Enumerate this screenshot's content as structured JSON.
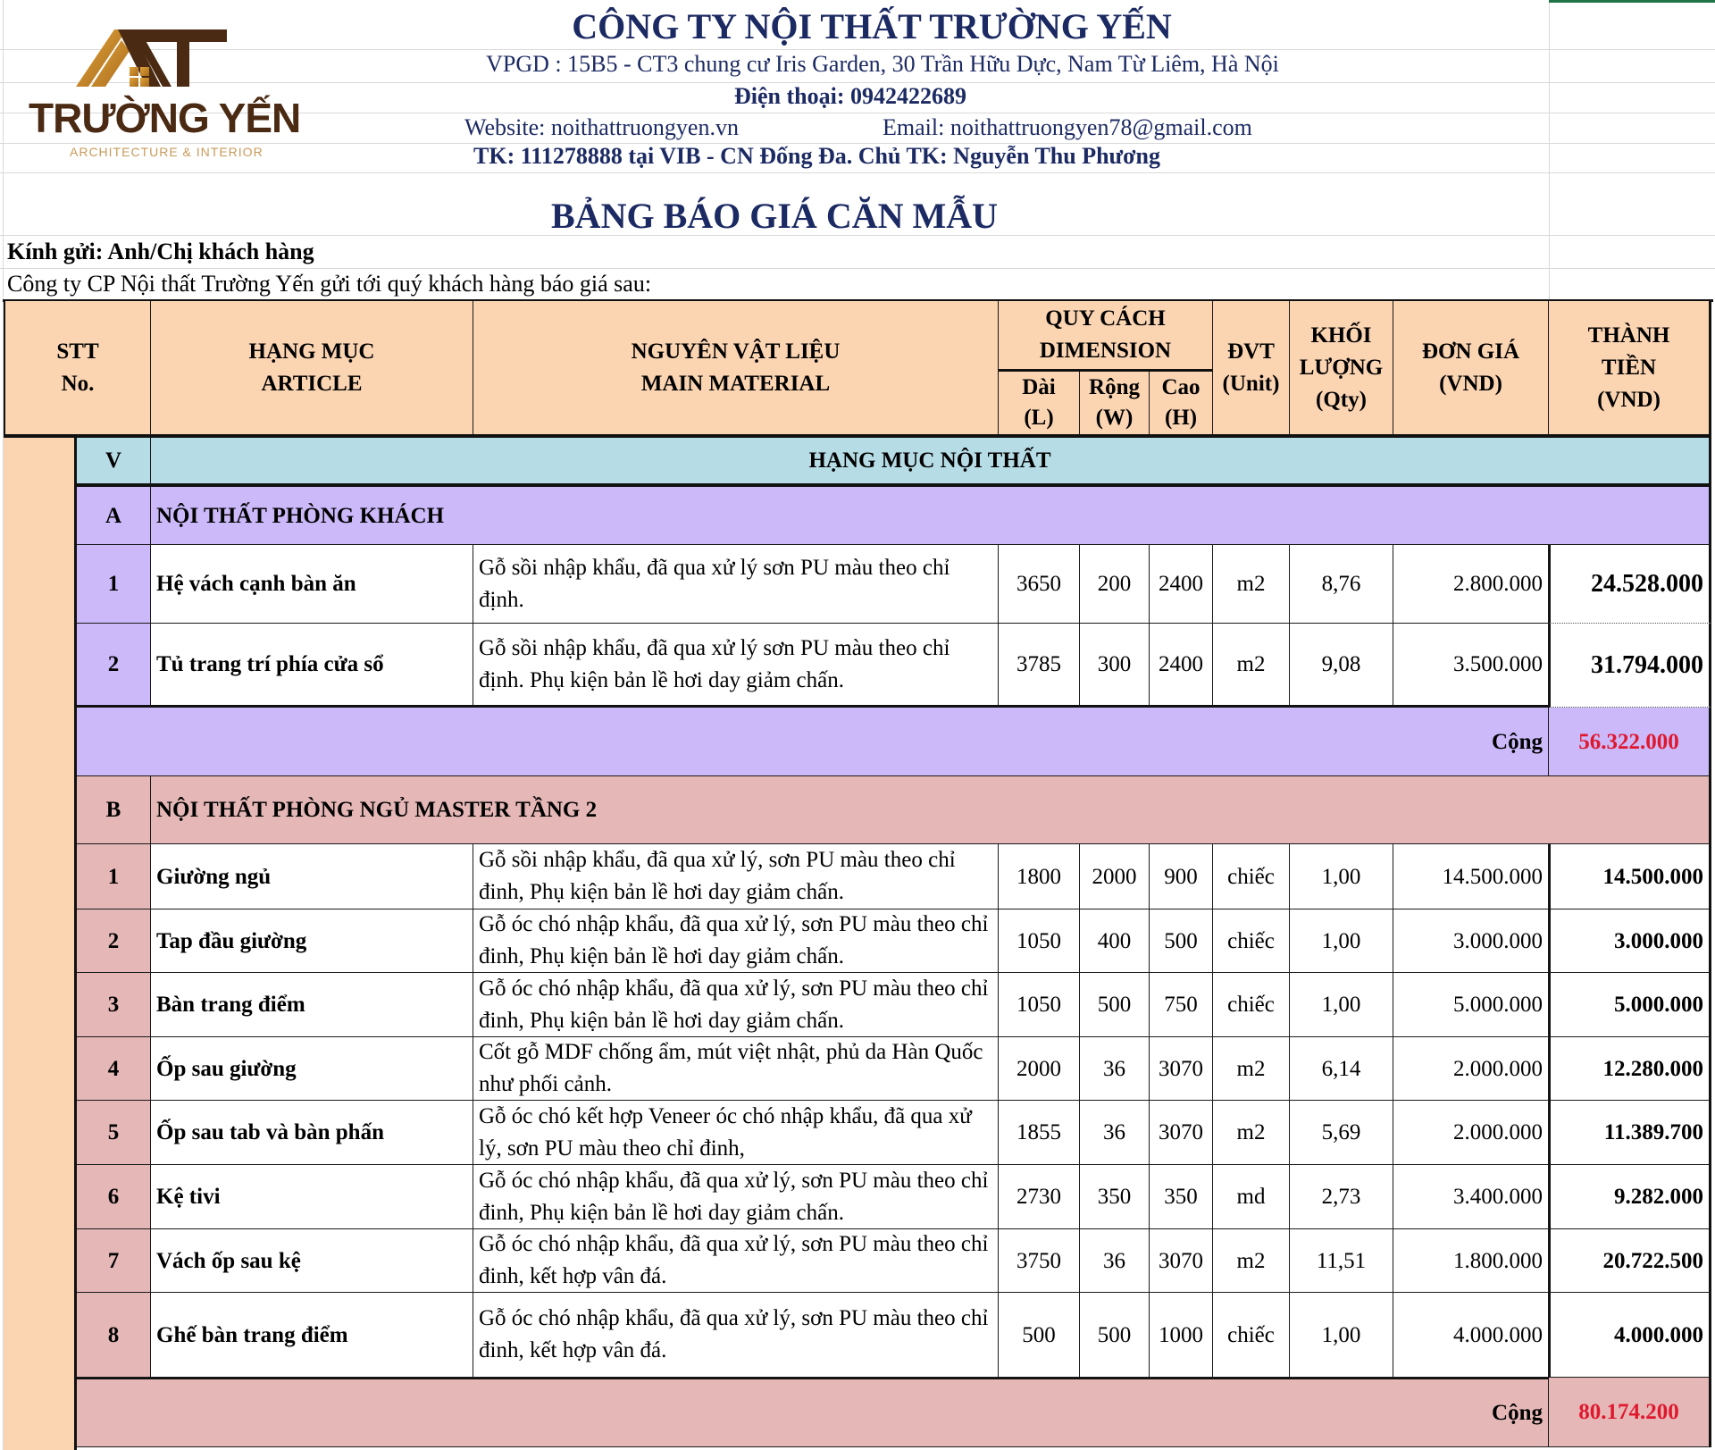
{
  "logo": {
    "brand": "TRƯỜNG YẾN",
    "tagline": "ARCHITECTURE & INTERIOR"
  },
  "company": {
    "name": "CÔNG TY NỘI THẤT TRƯỜNG YẾN",
    "address": "VPGD : 15B5 - CT3 chung cư Iris Garden, 30 Trần Hữu Dực, Nam Từ Liêm, Hà Nội",
    "phone": "Điện thoại: 0942422689",
    "website": "Website: noithattruongyen.vn",
    "email": "Email: noithattruongyen78@gmail.com",
    "bank": "TK: 111278888 tại VIB - CN Đống Đa.  Chủ TK: Nguyễn Thu Phương"
  },
  "title": "BẢNG BÁO GIÁ CĂN MẪU",
  "greeting": "Kính gửi: Anh/Chị khách hàng",
  "intro": "Công ty CP Nội thất Trường Yến gửi tới quý khách hàng báo giá sau:",
  "headers": {
    "stt": "STT\nNo.",
    "article": "HẠNG MỤC\nARTICLE",
    "material": "NGUYÊN VẬT LIỆU\nMAIN MATERIAL",
    "dimension": "QUY CÁCH\nDIMENSION",
    "length": "Dài\n(L)",
    "width": "Rộng\n(W)",
    "height": "Cao\n(H)",
    "unit": "ĐVT\n(Unit)",
    "qty": "KHỐI\nLƯỢNG\n(Qty)",
    "price": "ĐƠN GIÁ\n(VND)",
    "total": "THÀNH\nTIỀN\n(VND)"
  },
  "section": {
    "code": "V",
    "label": "HẠNG MỤC NỘI THẤT"
  },
  "colors": {
    "header": "#fbd4b2",
    "section": "#b6dde6",
    "group_a": "#cbb9fa",
    "group_b": "#e5b8b7",
    "subtotal": "#e0182e",
    "text_navy": "#1c2a63"
  },
  "groups": [
    {
      "code": "A",
      "label": "NỘI THẤT PHÒNG KHÁCH",
      "items": [
        {
          "no": "1",
          "name": "Hệ vách cạnh bàn ăn",
          "material": "Gỗ sồi nhập khẩu, đã qua xử lý sơn PU màu theo chỉ định.",
          "l": "3650",
          "w": "200",
          "h": "2400",
          "unit": "m2",
          "qty": "8,76",
          "price": "2.800.000",
          "total": "24.528.000"
        },
        {
          "no": "2",
          "name": "Tủ trang trí phía cửa sổ",
          "material": "Gỗ sồi nhập khẩu, đã qua xử lý sơn PU màu theo chỉ định. Phụ kiện bản lề hơi day giảm chấn.",
          "l": "3785",
          "w": "300",
          "h": "2400",
          "unit": "m2",
          "qty": "9,08",
          "price": "3.500.000",
          "total": "31.794.000"
        }
      ],
      "subtotal_label": "Cộng",
      "subtotal": "56.322.000"
    },
    {
      "code": "B",
      "label": "NỘI THẤT PHÒNG NGỦ MASTER TẦNG 2",
      "items": [
        {
          "no": "1",
          "name": "Giường ngủ",
          "material": "Gỗ sồi nhập khẩu, đã qua xử lý, sơn PU màu theo chỉ đinh, Phụ kiện bản lề hơi day giảm chấn.",
          "l": "1800",
          "w": "2000",
          "h": "900",
          "unit": "chiếc",
          "qty": "1,00",
          "price": "14.500.000",
          "total": "14.500.000"
        },
        {
          "no": "2",
          "name": "Tap đầu giường",
          "material": "Gỗ óc chó nhập khẩu, đã qua xử lý, sơn PU màu theo chỉ đinh, Phụ kiện bản lề hơi day giảm chấn.",
          "l": "1050",
          "w": "400",
          "h": "500",
          "unit": "chiếc",
          "qty": "1,00",
          "price": "3.000.000",
          "total": "3.000.000"
        },
        {
          "no": "3",
          "name": "Bàn trang điểm",
          "material": "Gỗ óc chó nhập khẩu, đã qua xử lý, sơn PU màu theo chỉ đinh, Phụ kiện bản lề hơi day giảm chấn.",
          "l": "1050",
          "w": "500",
          "h": "750",
          "unit": "chiếc",
          "qty": "1,00",
          "price": "5.000.000",
          "total": "5.000.000"
        },
        {
          "no": "4",
          "name": "Ốp sau giường",
          "material": "Cốt gỗ MDF chống ẩm, mút việt nhật, phủ da Hàn Quốc như phối cảnh.",
          "l": "2000",
          "w": "36",
          "h": "3070",
          "unit": "m2",
          "qty": "6,14",
          "price": "2.000.000",
          "total": "12.280.000"
        },
        {
          "no": "5",
          "name": "Ốp sau tab và bàn phấn",
          "material": "Gỗ óc chó kết hợp Veneer óc chó nhập khẩu, đã qua xử lý, sơn PU màu theo chỉ đinh,",
          "l": "1855",
          "w": "36",
          "h": "3070",
          "unit": "m2",
          "qty": "5,69",
          "price": "2.000.000",
          "total": "11.389.700"
        },
        {
          "no": "6",
          "name": "Kệ tivi",
          "material": "Gỗ óc chó nhập khẩu, đã qua xử lý, sơn PU màu theo chỉ đinh, Phụ kiện bản lề hơi day giảm chấn.",
          "l": "2730",
          "w": "350",
          "h": "350",
          "unit": "md",
          "qty": "2,73",
          "price": "3.400.000",
          "total": "9.282.000"
        },
        {
          "no": "7",
          "name": "Vách ốp sau kệ",
          "material": "Gỗ óc chó nhập khẩu, đã qua xử lý, sơn PU màu theo chỉ đinh, kết hợp vân đá.",
          "l": "3750",
          "w": "36",
          "h": "3070",
          "unit": "m2",
          "qty": "11,51",
          "price": "1.800.000",
          "total": "20.722.500"
        },
        {
          "no": "8",
          "name": "Ghế bàn trang điểm",
          "material": "Gỗ óc chó nhập khẩu, đã qua xử lý, sơn PU màu theo chỉ đinh, kết hợp vân đá.",
          "l": "500",
          "w": "500",
          "h": "1000",
          "unit": "chiếc",
          "qty": "1,00",
          "price": "4.000.000",
          "total": "4.000.000"
        }
      ],
      "subtotal_label": "Cộng",
      "subtotal": "80.174.200"
    }
  ]
}
